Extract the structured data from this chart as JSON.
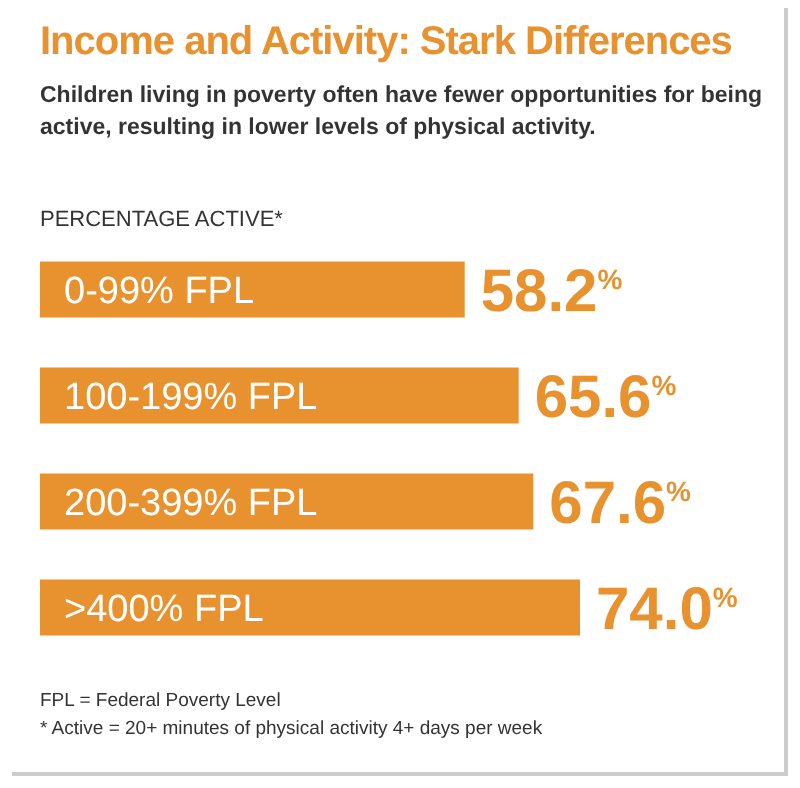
{
  "chart_data": {
    "type": "bar",
    "orientation": "horizontal",
    "title": "Income and Activity: Stark Differences",
    "subtitle": "Children living in poverty often have fewer opportunities for being active, resulting in lower levels of physical activity.",
    "xlabel": "PERCENTAGE ACTIVE*",
    "categories": [
      "0-99% FPL",
      "100-199% FPL",
      "200-399% FPL",
      ">400% FPL"
    ],
    "values": [
      58.2,
      65.6,
      67.6,
      74.0
    ],
    "value_labels": [
      "58.2$^{%}$",
      "65.6$^{%}$",
      "67.6$^{%}$",
      "74.0$^{%}$"
    ],
    "color": "#e8922f",
    "annotations": [
      "FPL = Federal Poverty Level",
      "* Active = 20+ minutes of physical activity 4+ days per week"
    ]
  }
}
